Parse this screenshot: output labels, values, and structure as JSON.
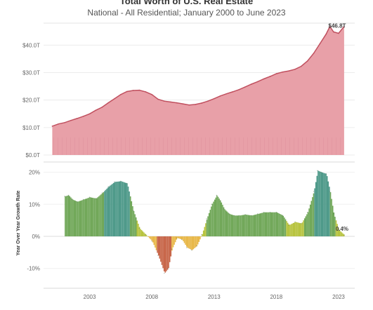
{
  "chart_data": [
    {
      "type": "area",
      "title": "Total Worth of U.S. Real Estate",
      "subtitle": "National - All Residential; January 2000 to June 2023",
      "ylabel": "",
      "ylim": [
        0,
        48
      ],
      "y_ticks": [
        "$0.0T",
        "$10.0T",
        "$20.0T",
        "$30.0T",
        "$40.0T"
      ],
      "y_tick_values": [
        0,
        10,
        20,
        30,
        40
      ],
      "color": "#e8a0a8",
      "line_color": "#c0505f",
      "x": [
        2000.0,
        2000.5,
        2001.0,
        2001.5,
        2002.0,
        2002.5,
        2003.0,
        2003.5,
        2004.0,
        2004.5,
        2005.0,
        2005.5,
        2006.0,
        2006.5,
        2007.0,
        2007.5,
        2008.0,
        2008.5,
        2009.0,
        2009.5,
        2010.0,
        2010.5,
        2011.0,
        2011.5,
        2012.0,
        2012.5,
        2013.0,
        2013.5,
        2014.0,
        2014.5,
        2015.0,
        2015.5,
        2016.0,
        2016.5,
        2017.0,
        2017.5,
        2018.0,
        2018.5,
        2019.0,
        2019.5,
        2020.0,
        2020.5,
        2021.0,
        2021.5,
        2022.0,
        2022.3,
        2022.6,
        2023.0,
        2023.45
      ],
      "values": [
        10.5,
        11.3,
        11.8,
        12.6,
        13.3,
        14.1,
        15.0,
        16.3,
        17.4,
        19.0,
        20.5,
        22.0,
        23.1,
        23.5,
        23.6,
        23.0,
        22.0,
        20.3,
        19.6,
        19.3,
        19.0,
        18.6,
        18.2,
        18.4,
        18.9,
        19.6,
        20.5,
        21.5,
        22.3,
        23.0,
        23.8,
        24.8,
        25.8,
        26.7,
        27.7,
        28.6,
        29.6,
        30.2,
        30.6,
        31.2,
        32.3,
        34.2,
        37.0,
        40.5,
        44.0,
        46.8,
        44.8,
        44.3,
        46.8
      ],
      "annotations": [
        {
          "text": "$46.8T",
          "x": 2023.0,
          "y": 46.8
        }
      ]
    },
    {
      "type": "area",
      "ylabel": "Year Over Year Growth Rate",
      "ylim": [
        -13,
        22
      ],
      "y_ticks": [
        "20%",
        "10%",
        "0%",
        "-10%"
      ],
      "y_tick_values": [
        20,
        10,
        0,
        -10
      ],
      "xlim": [
        1999.3,
        2024.3
      ],
      "x_ticks": [
        "2003",
        "2008",
        "2013",
        "2018",
        "2023"
      ],
      "x_tick_values": [
        2003,
        2008,
        2013,
        2018,
        2023
      ],
      "x": [
        2001.0,
        2001.3,
        2001.6,
        2002.0,
        2002.5,
        2003.0,
        2003.5,
        2004.0,
        2004.5,
        2005.0,
        2005.5,
        2006.0,
        2006.5,
        2007.0,
        2007.5,
        2008.0,
        2008.5,
        2009.0,
        2009.3,
        2009.6,
        2010.0,
        2010.4,
        2010.8,
        2011.2,
        2011.6,
        2012.0,
        2012.4,
        2012.8,
        2013.2,
        2013.5,
        2013.8,
        2014.2,
        2014.6,
        2015.0,
        2015.5,
        2016.0,
        2016.5,
        2017.0,
        2017.5,
        2018.0,
        2018.5,
        2019.0,
        2019.5,
        2020.0,
        2020.5,
        2021.0,
        2021.3,
        2021.6,
        2022.0,
        2022.3,
        2022.6,
        2023.0,
        2023.45
      ],
      "values": [
        12.5,
        12.8,
        11.5,
        10.8,
        11.5,
        12.2,
        11.8,
        13.5,
        15.5,
        17.0,
        17.2,
        16.5,
        8.0,
        2.5,
        0.5,
        -1.5,
        -6.0,
        -11.5,
        -10.0,
        -4.0,
        -0.5,
        -1.0,
        -3.5,
        -4.3,
        -3.0,
        0.5,
        5.5,
        10.0,
        12.8,
        11.0,
        8.5,
        7.0,
        6.5,
        6.5,
        6.8,
        6.5,
        7.0,
        7.5,
        7.5,
        7.5,
        6.5,
        3.5,
        4.5,
        4.0,
        7.5,
        14.0,
        20.5,
        20.0,
        19.5,
        14.0,
        7.0,
        2.0,
        0.4
      ],
      "annotations": [
        {
          "text": "0.4%",
          "x": 2023.45,
          "y": 0.4
        }
      ],
      "color_scale": {
        "negative_strong": "#c8674a",
        "negative_mild": "#e8b84a",
        "low": "#b8c440",
        "mid": "#72a85a",
        "high": "#4f9a8a"
      }
    }
  ]
}
